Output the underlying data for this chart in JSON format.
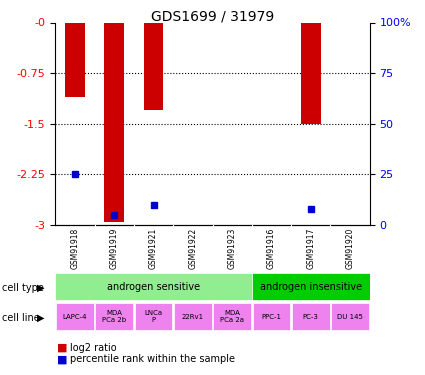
{
  "title": "GDS1699 / 31979",
  "samples": [
    "GSM91918",
    "GSM91919",
    "GSM91921",
    "GSM91922",
    "GSM91923",
    "GSM91916",
    "GSM91917",
    "GSM91920"
  ],
  "log2_ratio": [
    -1.1,
    -2.95,
    -1.3,
    0,
    0,
    0,
    -1.5,
    0
  ],
  "percentile_rank": [
    25,
    5,
    10,
    0,
    0,
    0,
    8,
    0
  ],
  "ylim_left": [
    -3,
    0
  ],
  "ylim_right": [
    0,
    100
  ],
  "yticks_left": [
    0,
    -0.75,
    -1.5,
    -2.25,
    -3
  ],
  "yticks_right": [
    0,
    25,
    50,
    75,
    100
  ],
  "cell_type_labels": [
    "androgen sensitive",
    "androgen insensitive"
  ],
  "cell_type_colors": [
    "#90EE90",
    "#00CC00"
  ],
  "cell_line_labels": [
    "LAPC-4",
    "MDA\nPCa 2b",
    "LNCa\nP",
    "22Rv1",
    "MDA\nPCa 2a",
    "PPC-1",
    "PC-3",
    "DU 145"
  ],
  "cell_line_color": "#EE82EE",
  "bar_color": "#CC0000",
  "blue_color": "#0000CC",
  "bg_color": "#FFFFFF",
  "sample_bg": "#C8C8C8"
}
